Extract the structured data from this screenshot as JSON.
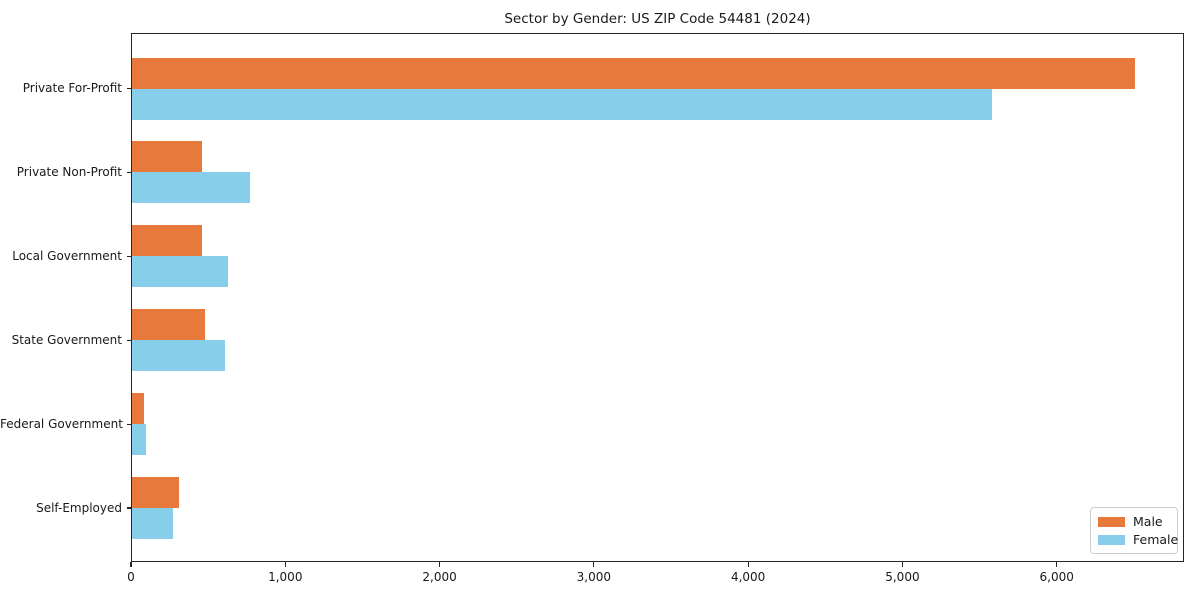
{
  "chart_data": {
    "type": "bar",
    "orientation": "horizontal",
    "title": "Sector by Gender: US ZIP Code 54481 (2024)",
    "categories": [
      "Private For-Profit",
      "Private Non-Profit",
      "Local Government",
      "State Government",
      "Federal Government",
      "Self-Employed"
    ],
    "series": [
      {
        "name": "Male",
        "color": "#e8793c",
        "values": [
          6500,
          455,
          455,
          475,
          75,
          305
        ]
      },
      {
        "name": "Female",
        "color": "#87ceeb",
        "values": [
          5570,
          765,
          620,
          600,
          90,
          265
        ]
      }
    ],
    "xlabel": "",
    "ylabel": "",
    "xlim": [
      0,
      6825
    ],
    "xticks": [
      0,
      1000,
      2000,
      3000,
      4000,
      5000,
      6000
    ],
    "xtick_labels": [
      "0",
      "1,000",
      "2,000",
      "3,000",
      "4,000",
      "5,000",
      "6,000"
    ],
    "grid": false,
    "legend_position": "lower right",
    "colors": {
      "axis": "#262626",
      "text": "#1a1a1a",
      "legend_border": "#cccccc",
      "background": "#ffffff"
    }
  }
}
